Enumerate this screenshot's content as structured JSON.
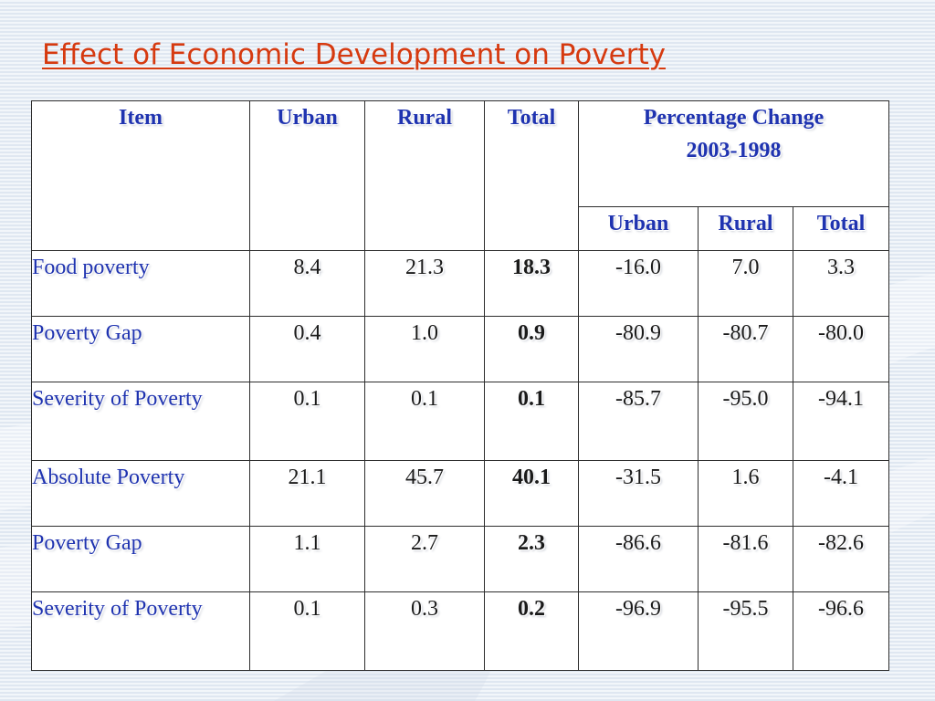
{
  "slide": {
    "title": "Effect of Economic Development on Poverty"
  },
  "table": {
    "headers": {
      "item": "Item",
      "urban": "Urban",
      "rural": "Rural",
      "total": "Total",
      "percentage_change_line1": "Percentage Change",
      "percentage_change_line2": "2003-1998",
      "pct_urban": "Urban",
      "pct_rural": "Rural",
      "pct_total": "Total"
    },
    "rows": [
      {
        "label": "Food poverty",
        "urban": "8.4",
        "rural": "21.3",
        "total": "18.3",
        "pct_urban": "-16.0",
        "pct_rural": "7.0",
        "pct_total": "3.3"
      },
      {
        "label": "Poverty Gap",
        "urban": "0.4",
        "rural": "1.0",
        "total": "0.9",
        "pct_urban": "-80.9",
        "pct_rural": "-80.7",
        "pct_total": "-80.0"
      },
      {
        "label": "Severity of Poverty",
        "urban": "0.1",
        "rural": "0.1",
        "total": "0.1",
        "pct_urban": "-85.7",
        "pct_rural": "-95.0",
        "pct_total": "-94.1"
      },
      {
        "label": "Absolute Poverty",
        "urban": "21.1",
        "rural": "45.7",
        "total": "40.1",
        "pct_urban": "-31.5",
        "pct_rural": "1.6",
        "pct_total": "-4.1"
      },
      {
        "label": "Poverty Gap",
        "urban": "1.1",
        "rural": "2.7",
        "total": "2.3",
        "pct_urban": "-86.6",
        "pct_rural": "-81.6",
        "pct_total": "-82.6"
      },
      {
        "label": "Severity of Poverty",
        "urban": "0.1",
        "rural": "0.3",
        "total": "0.2",
        "pct_urban": "-96.9",
        "pct_rural": "-95.5",
        "pct_total": "-96.6"
      }
    ]
  },
  "colors": {
    "title": "#d63a10",
    "header_text": "#1f33b0",
    "row_label_text": "#1f33b0",
    "value_text": "#1a1a1a",
    "table_fill": "#ffffff",
    "border": "#2d2d2d",
    "background": "#e6edf5"
  }
}
